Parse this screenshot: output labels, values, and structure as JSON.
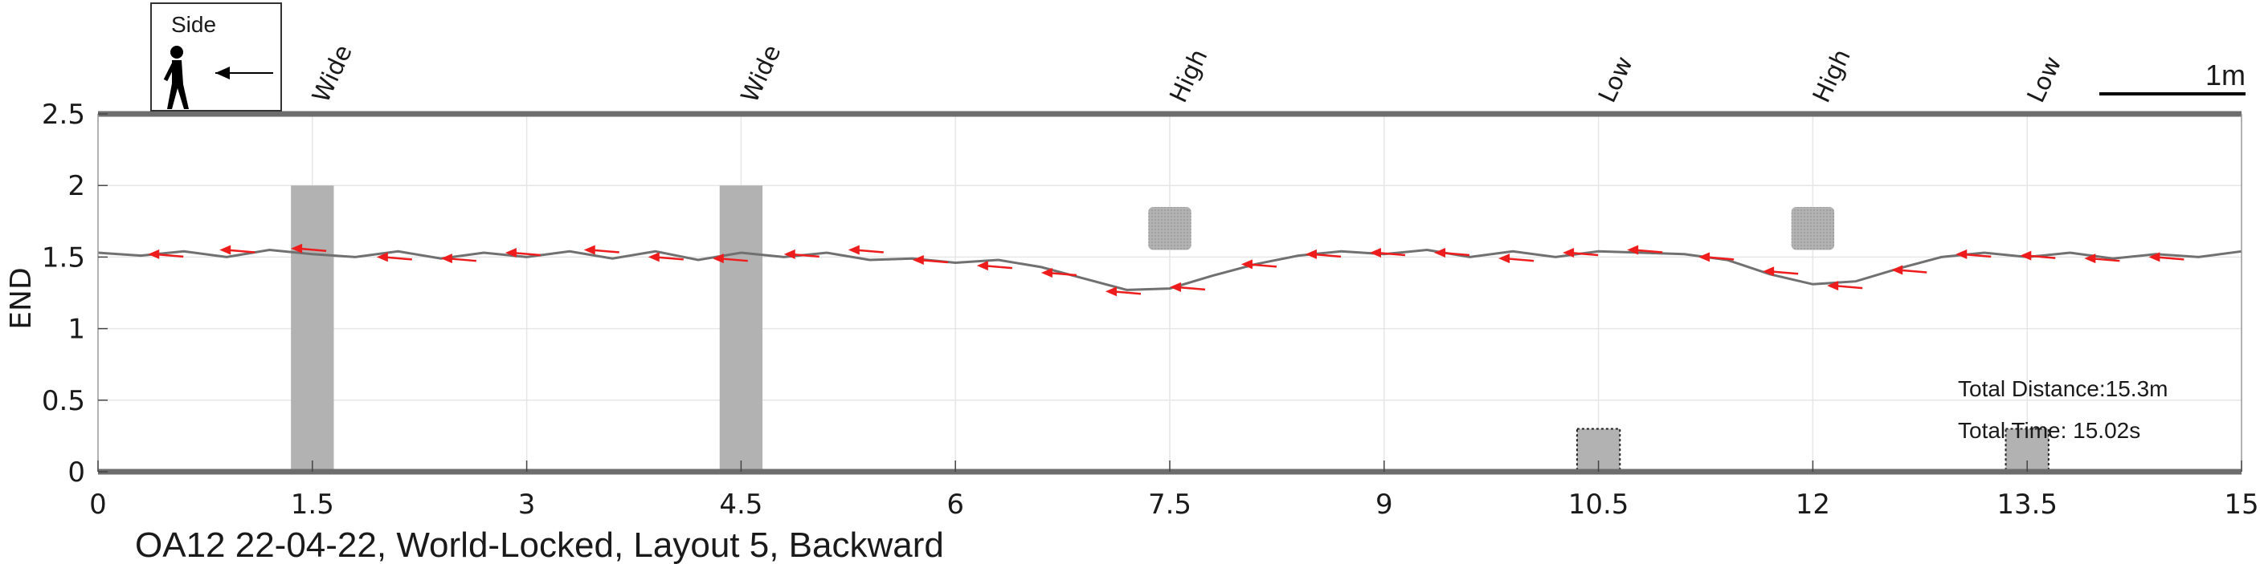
{
  "chart_data": {
    "type": "line",
    "caption": "OA12 22-04-22, World-Locked, Layout 5, Backward",
    "ylabel": "END",
    "xlabel": "",
    "xlim": [
      0,
      15
    ],
    "ylim": [
      0,
      2.5
    ],
    "x_ticks": [
      "0",
      "1.5",
      "3",
      "4.5",
      "6",
      "7.5",
      "9",
      "10.5",
      "12",
      "13.5",
      "15"
    ],
    "y_ticks": [
      "0",
      "0.5",
      "1",
      "1.5",
      "2",
      "2.5"
    ],
    "grid": true,
    "legend": {
      "label": "Side",
      "position": "top-left",
      "direction": "left"
    },
    "scale_bar": {
      "label": "1m",
      "length_x_units": 1
    },
    "stats": {
      "total_distance": "Total Distance:15.3m",
      "total_time": "Total Time: 15.02s"
    },
    "obstacle_labels": [
      {
        "x": 1.5,
        "text": "Wide"
      },
      {
        "x": 4.5,
        "text": "Wide"
      },
      {
        "x": 7.5,
        "text": "High"
      },
      {
        "x": 10.5,
        "text": "Low"
      },
      {
        "x": 12.0,
        "text": "High"
      },
      {
        "x": 13.5,
        "text": "Low"
      }
    ],
    "obstacles": [
      {
        "kind": "wide",
        "x0": 1.35,
        "x1": 1.65,
        "y0": 0.0,
        "y1": 2.0
      },
      {
        "kind": "wide",
        "x0": 4.35,
        "x1": 4.65,
        "y0": 0.0,
        "y1": 2.0
      },
      {
        "kind": "high",
        "x0": 7.35,
        "x1": 7.65,
        "y0": 1.55,
        "y1": 1.85
      },
      {
        "kind": "low",
        "x0": 10.35,
        "x1": 10.65,
        "y0": 0.0,
        "y1": 0.3
      },
      {
        "kind": "high",
        "x0": 11.85,
        "x1": 12.15,
        "y0": 1.55,
        "y1": 1.85
      },
      {
        "kind": "low",
        "x0": 13.35,
        "x1": 13.65,
        "y0": 0.0,
        "y1": 0.3
      }
    ],
    "series": [
      {
        "x": [
          0,
          0.3,
          0.6,
          0.9,
          1.2,
          1.5,
          1.8,
          2.1,
          2.4,
          2.7,
          3.0,
          3.3,
          3.6,
          3.9,
          4.2,
          4.5,
          4.8,
          5.1,
          5.4,
          5.7,
          6.0,
          6.3,
          6.6,
          6.9,
          7.2,
          7.5,
          7.8,
          8.1,
          8.4,
          8.7,
          9.0,
          9.3,
          9.6,
          9.9,
          10.2,
          10.5,
          10.8,
          11.1,
          11.4,
          11.7,
          12.0,
          12.3,
          12.6,
          12.9,
          13.2,
          13.5,
          13.8,
          14.1,
          14.4,
          14.7,
          15.0
        ],
        "y": [
          1.53,
          1.51,
          1.54,
          1.5,
          1.55,
          1.52,
          1.5,
          1.54,
          1.49,
          1.53,
          1.5,
          1.54,
          1.49,
          1.54,
          1.48,
          1.53,
          1.5,
          1.53,
          1.48,
          1.49,
          1.46,
          1.48,
          1.43,
          1.35,
          1.27,
          1.28,
          1.37,
          1.45,
          1.51,
          1.54,
          1.52,
          1.55,
          1.5,
          1.54,
          1.5,
          1.54,
          1.53,
          1.52,
          1.48,
          1.38,
          1.31,
          1.33,
          1.42,
          1.5,
          1.53,
          1.5,
          1.53,
          1.49,
          1.52,
          1.5,
          1.54
        ]
      }
    ],
    "arrows": [
      {
        "x": 0.35,
        "y": 1.52
      },
      {
        "x": 0.85,
        "y": 1.55
      },
      {
        "x": 1.35,
        "y": 1.56
      },
      {
        "x": 1.95,
        "y": 1.5
      },
      {
        "x": 2.4,
        "y": 1.49
      },
      {
        "x": 2.85,
        "y": 1.53
      },
      {
        "x": 3.4,
        "y": 1.55
      },
      {
        "x": 3.85,
        "y": 1.5
      },
      {
        "x": 4.3,
        "y": 1.49
      },
      {
        "x": 4.8,
        "y": 1.52
      },
      {
        "x": 5.25,
        "y": 1.55
      },
      {
        "x": 5.7,
        "y": 1.48
      },
      {
        "x": 6.15,
        "y": 1.44
      },
      {
        "x": 6.6,
        "y": 1.39
      },
      {
        "x": 7.05,
        "y": 1.26
      },
      {
        "x": 7.5,
        "y": 1.29
      },
      {
        "x": 8.0,
        "y": 1.45
      },
      {
        "x": 8.45,
        "y": 1.52
      },
      {
        "x": 8.9,
        "y": 1.53
      },
      {
        "x": 9.35,
        "y": 1.53
      },
      {
        "x": 9.8,
        "y": 1.49
      },
      {
        "x": 10.25,
        "y": 1.53
      },
      {
        "x": 10.7,
        "y": 1.55
      },
      {
        "x": 11.2,
        "y": 1.5
      },
      {
        "x": 11.65,
        "y": 1.4
      },
      {
        "x": 12.1,
        "y": 1.3
      },
      {
        "x": 12.55,
        "y": 1.41
      },
      {
        "x": 13.0,
        "y": 1.52
      },
      {
        "x": 13.45,
        "y": 1.51
      },
      {
        "x": 13.9,
        "y": 1.49
      },
      {
        "x": 14.35,
        "y": 1.5
      }
    ],
    "colors": {
      "path": "#707070",
      "arrow": "#ee1c1c",
      "obstacle": "#b2b2b2",
      "axis": "#6d6d6d",
      "grid": "#e6e6e6",
      "text": "#1a1a1a"
    }
  }
}
